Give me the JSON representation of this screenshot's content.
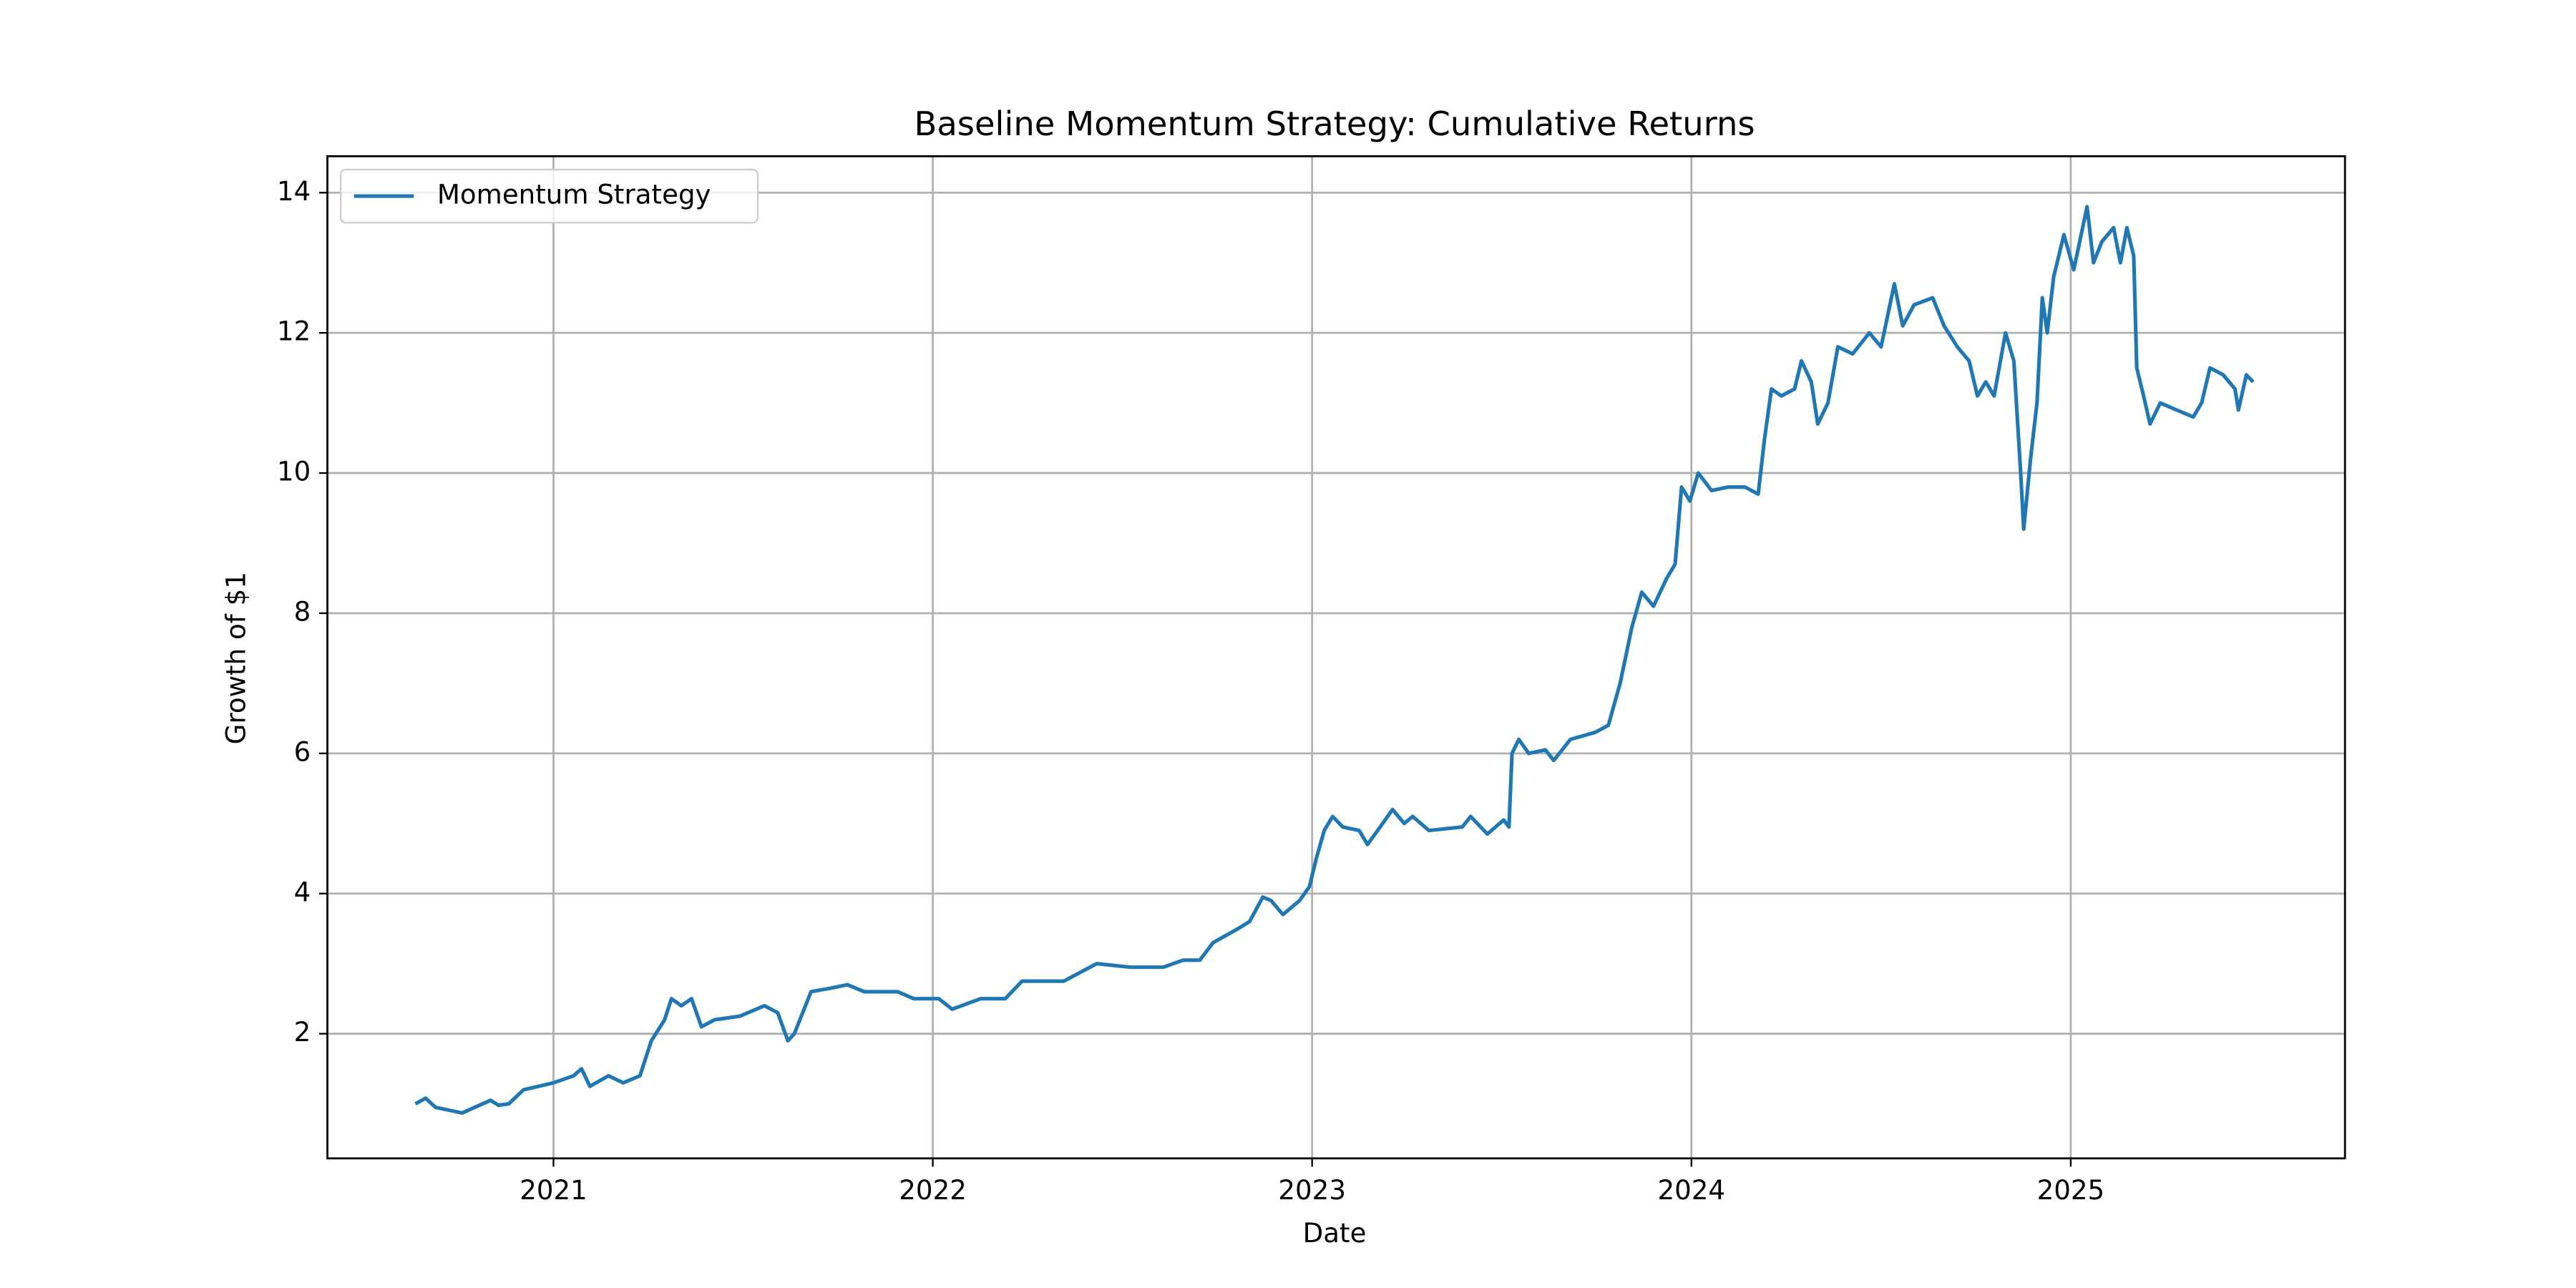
{
  "chart_data": {
    "type": "line",
    "title": "Baseline Momentum Strategy: Cumulative Returns",
    "xlabel": "Date",
    "ylabel": "Growth of $1",
    "x": [
      2020.636,
      2020.663,
      2020.689,
      2020.759,
      2020.834,
      2020.855,
      2020.882,
      2020.921,
      2021.0,
      2021.053,
      2021.074,
      2021.096,
      2021.145,
      2021.184,
      2021.228,
      2021.258,
      2021.293,
      2021.311,
      2021.337,
      2021.364,
      2021.39,
      2021.425,
      2021.491,
      2021.556,
      2021.591,
      2021.618,
      2021.635,
      2021.679,
      2021.731,
      2021.775,
      2021.819,
      2021.907,
      2021.95,
      2022.016,
      2022.051,
      2022.126,
      2022.191,
      2022.235,
      2022.345,
      2022.432,
      2022.52,
      2022.608,
      2022.66,
      2022.704,
      2022.739,
      2022.805,
      2022.835,
      2022.87,
      2022.892,
      2022.923,
      2022.967,
      2022.993,
      2023.011,
      2023.032,
      2023.054,
      2023.081,
      2023.124,
      2023.146,
      2023.186,
      2023.212,
      2023.243,
      2023.265,
      2023.308,
      2023.396,
      2023.418,
      2023.462,
      2023.505,
      2023.519,
      2023.527,
      2023.545,
      2023.571,
      2023.615,
      2023.637,
      2023.681,
      2023.746,
      2023.781,
      2023.812,
      2023.843,
      2023.869,
      2023.9,
      2023.935,
      2023.957,
      2023.974,
      2023.996,
      2024.018,
      2024.053,
      2024.097,
      2024.141,
      2024.176,
      2024.193,
      2024.211,
      2024.237,
      2024.272,
      2024.29,
      2024.316,
      2024.333,
      2024.36,
      2024.386,
      2024.425,
      2024.469,
      2024.5,
      2024.535,
      2024.557,
      2024.587,
      2024.636,
      2024.666,
      2024.701,
      2024.732,
      2024.754,
      2024.776,
      2024.798,
      2024.828,
      2024.85,
      2024.868,
      2024.876,
      2024.894,
      2024.911,
      2024.925,
      2024.938,
      2024.955,
      2024.982,
      2025.008,
      2025.043,
      2025.06,
      2025.082,
      2025.113,
      2025.131,
      2025.148,
      2025.166,
      2025.174,
      2025.192,
      2025.209,
      2025.236,
      2025.279,
      2025.323,
      2025.345,
      2025.367,
      2025.402,
      2025.433,
      2025.442,
      2025.463,
      2025.481
    ],
    "series": [
      {
        "name": "Momentum Strategy",
        "color": "#1f77b4",
        "values": [
          1.0,
          1.08,
          0.95,
          0.87,
          1.05,
          0.98,
          1.0,
          1.2,
          1.3,
          1.4,
          1.5,
          1.25,
          1.4,
          1.3,
          1.4,
          1.9,
          2.2,
          2.5,
          2.4,
          2.5,
          2.1,
          2.2,
          2.25,
          2.4,
          2.3,
          1.9,
          2.0,
          2.6,
          2.65,
          2.7,
          2.6,
          2.6,
          2.5,
          2.5,
          2.35,
          2.5,
          2.5,
          2.75,
          2.75,
          3.0,
          2.95,
          2.95,
          3.05,
          3.05,
          3.3,
          3.5,
          3.6,
          3.95,
          3.9,
          3.7,
          3.9,
          4.1,
          4.5,
          4.9,
          5.1,
          4.95,
          4.9,
          4.7,
          5.0,
          5.2,
          5.0,
          5.1,
          4.9,
          4.95,
          5.1,
          4.85,
          5.05,
          4.95,
          6.0,
          6.2,
          6.0,
          6.05,
          5.9,
          6.2,
          6.3,
          6.4,
          7.0,
          7.8,
          8.3,
          8.1,
          8.5,
          8.7,
          9.8,
          9.6,
          10.0,
          9.75,
          9.8,
          9.8,
          9.7,
          10.5,
          11.2,
          11.1,
          11.2,
          11.6,
          11.3,
          10.7,
          11.0,
          11.8,
          11.7,
          12.0,
          11.8,
          12.7,
          12.1,
          12.4,
          12.5,
          12.1,
          11.8,
          11.6,
          11.1,
          11.3,
          11.1,
          12.0,
          11.6,
          10.0,
          9.2,
          10.2,
          11.0,
          12.5,
          12.0,
          12.8,
          13.4,
          12.9,
          13.8,
          13.0,
          13.3,
          13.5,
          13.0,
          13.5,
          13.1,
          11.5,
          11.1,
          10.7,
          11.0,
          10.9,
          10.8,
          11.0,
          11.5,
          11.4,
          11.2,
          10.9,
          11.4,
          11.3
        ]
      }
    ],
    "xlim": [
      2020.404,
      2025.723
    ],
    "xticks": [
      2021,
      2022,
      2023,
      2024,
      2025
    ],
    "ylim": [
      0.222,
      14.52
    ],
    "yticks": [
      2,
      4,
      6,
      8,
      10,
      12,
      14
    ],
    "grid": true,
    "legend": "upper left"
  }
}
